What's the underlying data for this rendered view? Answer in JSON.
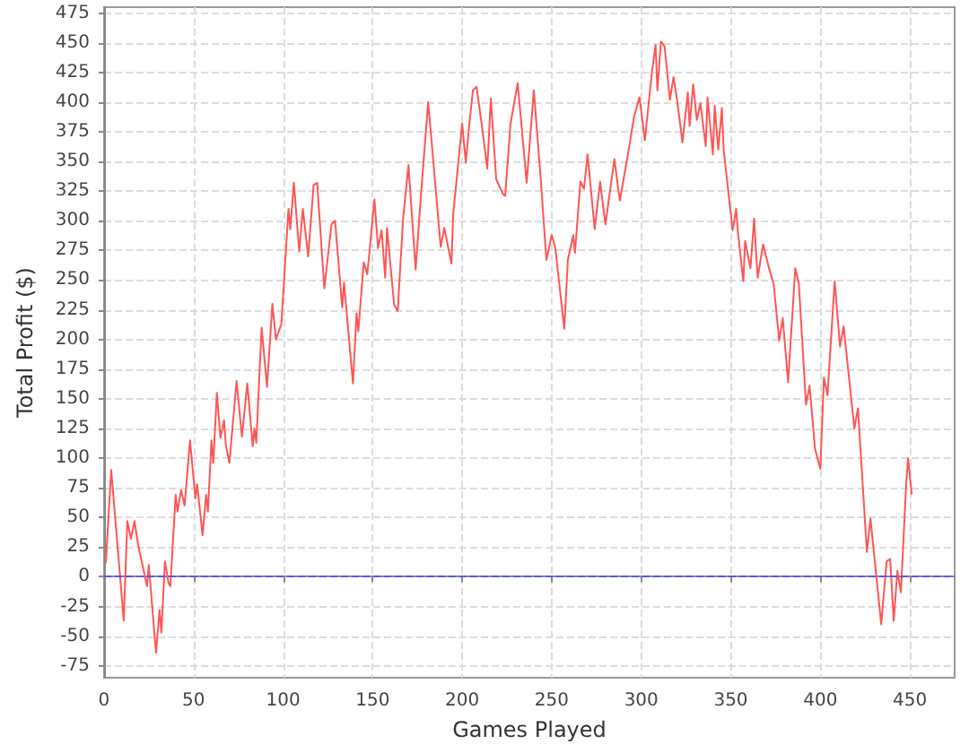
{
  "chart_data": {
    "type": "line",
    "xlabel": "Games Played",
    "ylabel": "Total Profit ($)",
    "xlim": [
      0,
      475
    ],
    "xticks": [
      0,
      50,
      100,
      150,
      200,
      250,
      300,
      350,
      400,
      450
    ],
    "ylim": [
      -85,
      480
    ],
    "yticks": [
      -75,
      -50,
      -25,
      0,
      25,
      50,
      75,
      100,
      125,
      150,
      175,
      200,
      225,
      250,
      275,
      300,
      325,
      350,
      375,
      400,
      425,
      450,
      475
    ],
    "grid": true,
    "marker": "none",
    "line_style": "solid",
    "ref_lines": [
      {
        "axis": "y",
        "value": 0,
        "color": "#5555ff",
        "line_style": "dashed"
      }
    ],
    "series": [
      {
        "color": "#ff5555",
        "x": [
          1,
          4,
          11,
          13,
          15,
          17,
          19,
          24,
          25,
          29,
          31,
          32,
          34,
          36,
          37,
          40,
          41,
          43,
          45,
          48,
          51,
          52,
          55,
          57,
          58,
          60,
          61,
          63,
          65,
          67,
          68,
          70,
          74,
          77,
          80,
          83,
          84,
          85,
          88,
          91,
          94,
          96,
          99,
          103,
          104,
          106,
          109,
          111,
          114,
          117,
          119,
          123,
          127,
          129,
          133,
          134,
          139,
          141,
          142,
          145,
          147,
          151,
          153,
          155,
          157,
          158,
          162,
          164,
          167,
          170,
          174,
          177,
          181,
          188,
          190,
          194,
          195,
          200,
          202,
          204,
          206,
          208,
          211,
          214,
          216,
          219,
          223,
          224,
          227,
          231,
          236,
          240,
          244,
          247,
          250,
          252,
          257,
          259,
          262,
          263,
          266,
          268,
          270,
          274,
          277,
          280,
          285,
          288,
          292,
          296,
          299,
          302,
          306,
          308,
          309,
          311,
          313,
          316,
          318,
          320,
          323,
          326,
          327,
          329,
          331,
          333,
          336,
          337,
          340,
          341,
          343,
          345,
          346,
          351,
          353,
          354,
          357,
          358,
          361,
          363,
          365,
          368,
          371,
          374,
          377,
          379,
          382,
          386,
          388,
          392,
          394,
          397,
          400,
          402,
          404,
          408,
          411,
          413,
          419,
          421,
          426,
          428,
          434,
          437,
          439,
          441,
          443,
          445,
          448,
          449,
          451
        ],
        "values": [
          12,
          90,
          -37,
          47,
          32,
          47,
          27,
          -8,
          10,
          -64,
          -28,
          -47,
          13,
          -5,
          -8,
          69,
          55,
          73,
          60,
          115,
          66,
          78,
          35,
          69,
          55,
          115,
          96,
          155,
          117,
          132,
          111,
          96,
          165,
          118,
          163,
          110,
          125,
          113,
          210,
          160,
          230,
          200,
          213,
          310,
          293,
          332,
          274,
          310,
          270,
          330,
          332,
          243,
          297,
          300,
          227,
          248,
          163,
          222,
          207,
          265,
          255,
          318,
          277,
          292,
          252,
          294,
          229,
          224,
          302,
          347,
          259,
          322,
          400,
          278,
          294,
          264,
          306,
          382,
          349,
          382,
          410,
          413,
          380,
          344,
          403,
          335,
          322,
          321,
          382,
          416,
          332,
          410,
          332,
          267,
          288,
          277,
          209,
          267,
          288,
          273,
          333,
          327,
          356,
          293,
          333,
          297,
          352,
          317,
          351,
          388,
          404,
          368,
          426,
          448,
          410,
          451,
          447,
          402,
          421,
          402,
          366,
          408,
          380,
          415,
          385,
          399,
          363,
          404,
          356,
          397,
          360,
          395,
          360,
          292,
          310,
          290,
          249,
          283,
          260,
          302,
          252,
          280,
          262,
          246,
          199,
          218,
          164,
          260,
          247,
          145,
          161,
          108,
          91,
          168,
          153,
          249,
          194,
          211,
          125,
          142,
          21,
          49,
          -40,
          13,
          15,
          -37,
          5,
          -13,
          80,
          100,
          70
        ]
      }
    ]
  }
}
